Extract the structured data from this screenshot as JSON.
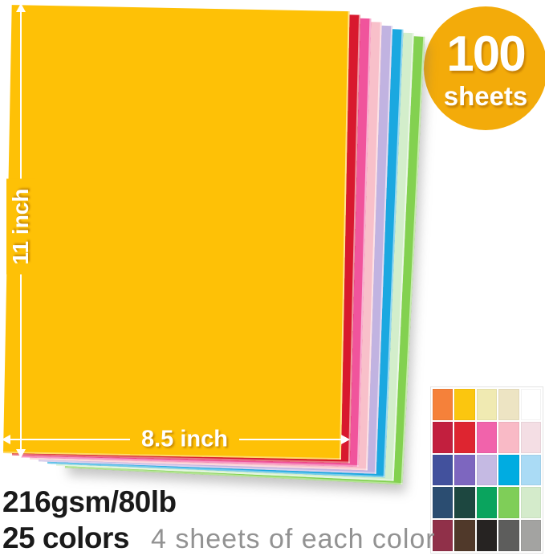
{
  "badge": {
    "count": "100",
    "unit": "sheets",
    "bg_color": "#F3AB0A"
  },
  "stack": {
    "sheet_colors": [
      {
        "name": "gold",
        "hex": "#FEC106"
      },
      {
        "name": "red",
        "hex": "#D8192E"
      },
      {
        "name": "hot-pink",
        "hex": "#F0549C"
      },
      {
        "name": "light-pink",
        "hex": "#F8C0CA"
      },
      {
        "name": "lavender",
        "hex": "#C1B3E1"
      },
      {
        "name": "blue",
        "hex": "#1BA8E0"
      },
      {
        "name": "mint",
        "hex": "#D3EECB"
      },
      {
        "name": "green",
        "hex": "#83D150"
      }
    ]
  },
  "dimensions": {
    "height_label": "11 inch",
    "width_label": "8.5 inch"
  },
  "specs": {
    "weight": "216gsm/80lb",
    "color_count": "25 colors",
    "per_color": "4 sheets of each color"
  },
  "palette": {
    "rows": 5,
    "cols": 5,
    "swatches": [
      {
        "name": "orange",
        "hex": "#F5813A"
      },
      {
        "name": "gold",
        "hex": "#FBC60F"
      },
      {
        "name": "ivory",
        "hex": "#F0EAB2"
      },
      {
        "name": "cream",
        "hex": "#EDE4C3"
      },
      {
        "name": "white",
        "hex": "#FFFFFF"
      },
      {
        "name": "crimson",
        "hex": "#C21F3E"
      },
      {
        "name": "red",
        "hex": "#DE2530"
      },
      {
        "name": "hot-pink",
        "hex": "#F163AB"
      },
      {
        "name": "pink",
        "hex": "#F9BAC6"
      },
      {
        "name": "blush",
        "hex": "#F4DEE4"
      },
      {
        "name": "navy-blue",
        "hex": "#42519D"
      },
      {
        "name": "purple",
        "hex": "#7D66BF"
      },
      {
        "name": "lavender",
        "hex": "#C5BAE3"
      },
      {
        "name": "cyan",
        "hex": "#00ACE1"
      },
      {
        "name": "sky-blue",
        "hex": "#AADBF5"
      },
      {
        "name": "steel-blue",
        "hex": "#2B4D71"
      },
      {
        "name": "pine-green",
        "hex": "#1D4740"
      },
      {
        "name": "green",
        "hex": "#0AA45E"
      },
      {
        "name": "lime-green",
        "hex": "#7FCE58"
      },
      {
        "name": "mint",
        "hex": "#D4EBCB"
      },
      {
        "name": "burgundy",
        "hex": "#903049"
      },
      {
        "name": "brown",
        "hex": "#50392A"
      },
      {
        "name": "black",
        "hex": "#262322"
      },
      {
        "name": "dark-gray",
        "hex": "#5D5D5C"
      },
      {
        "name": "gray",
        "hex": "#A3A3A1"
      }
    ]
  }
}
